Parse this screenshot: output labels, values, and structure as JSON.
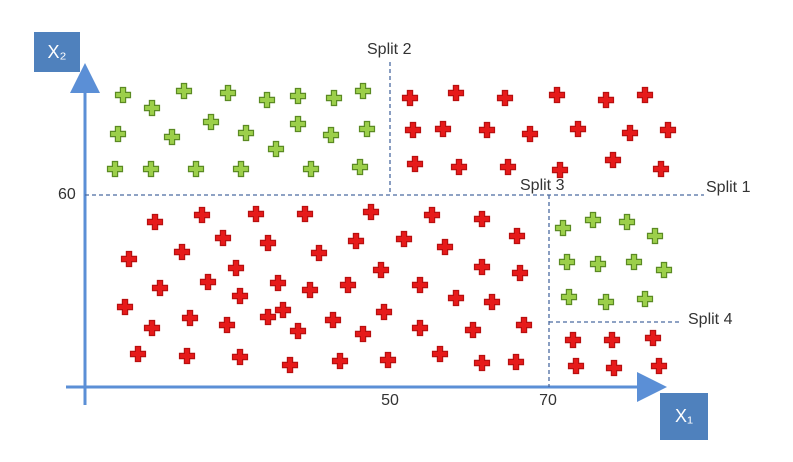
{
  "axes": {
    "y_label": "X₂",
    "x_label": "X₁"
  },
  "ticks": {
    "y_60": "60",
    "x_50": "50",
    "x_70": "70"
  },
  "splits": [
    "Split 1",
    "Split 2",
    "Split 3",
    "Split 4"
  ]
}
